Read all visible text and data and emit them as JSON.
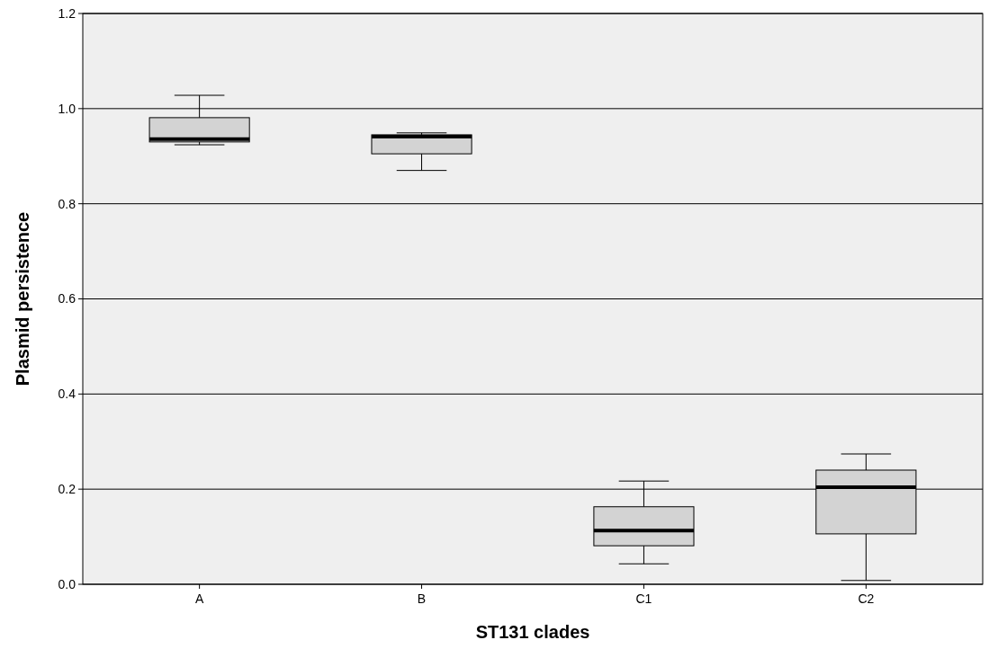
{
  "chart_data": {
    "type": "box",
    "xlabel": "ST131 clades",
    "ylabel": "Plasmid persistence",
    "categories": [
      "A",
      "B",
      "C1",
      "C2"
    ],
    "boxes": [
      {
        "low": 0.924,
        "q1": 0.93,
        "median": 0.936,
        "q3": 0.981,
        "high": 1.028
      },
      {
        "low": 0.87,
        "q1": 0.905,
        "median": 0.941,
        "q3": 0.945,
        "high": 0.949
      },
      {
        "low": 0.043,
        "q1": 0.081,
        "median": 0.113,
        "q3": 0.163,
        "high": 0.217
      },
      {
        "low": 0.008,
        "q1": 0.106,
        "median": 0.204,
        "q3": 0.24,
        "high": 0.274
      }
    ],
    "color": "#d3d3d3",
    "ylim": [
      0,
      1.2
    ],
    "yticks": [
      {
        "value": 0,
        "label": "0.0"
      },
      {
        "value": 0.2,
        "label": "0.2"
      },
      {
        "value": 0.4,
        "label": "0.4"
      },
      {
        "value": 0.6,
        "label": "0.6"
      },
      {
        "value": 0.8,
        "label": "0.8"
      },
      {
        "value": 1,
        "label": "1.0"
      },
      {
        "value": 1.2,
        "label": "1.2"
      }
    ],
    "grid": "y"
  }
}
